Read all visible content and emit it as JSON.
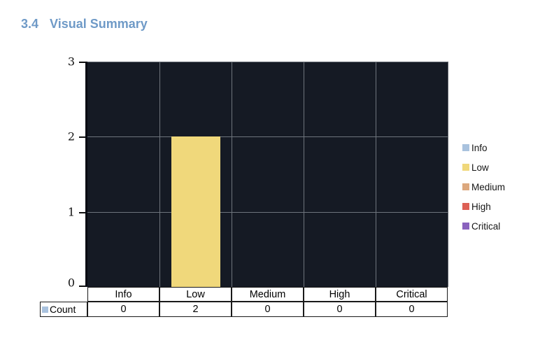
{
  "document": {
    "heading": {
      "number": "3.4",
      "title": "Visual Summary"
    },
    "heading_color": "#6F9AC7"
  },
  "chart_data": {
    "type": "bar",
    "title": "",
    "categories": [
      "Info",
      "Low",
      "Medium",
      "High",
      "Critical"
    ],
    "series": [
      {
        "name": "Count",
        "values": [
          0,
          2,
          0,
          0,
          0
        ]
      }
    ],
    "xlabel": "",
    "ylabel": "",
    "ylim": [
      0,
      3
    ],
    "yticks": [
      0,
      1,
      2,
      3
    ],
    "grid": true,
    "legend_position": "right",
    "legend": [
      {
        "label": "Info",
        "color": "#A9C2DE"
      },
      {
        "label": "Low",
        "color": "#F0D87B"
      },
      {
        "label": "Medium",
        "color": "#DCA87E"
      },
      {
        "label": "High",
        "color": "#DD6055"
      },
      {
        "label": "Critical",
        "color": "#8A63BE"
      }
    ],
    "plot_background": "#151A24",
    "gridline_color": "#6E747C"
  },
  "table": {
    "row_header": "Count",
    "marker_color": "#A9C2DE",
    "columns": [
      "Info",
      "Low",
      "Medium",
      "High",
      "Critical"
    ],
    "values": [
      0,
      2,
      0,
      0,
      0
    ]
  }
}
